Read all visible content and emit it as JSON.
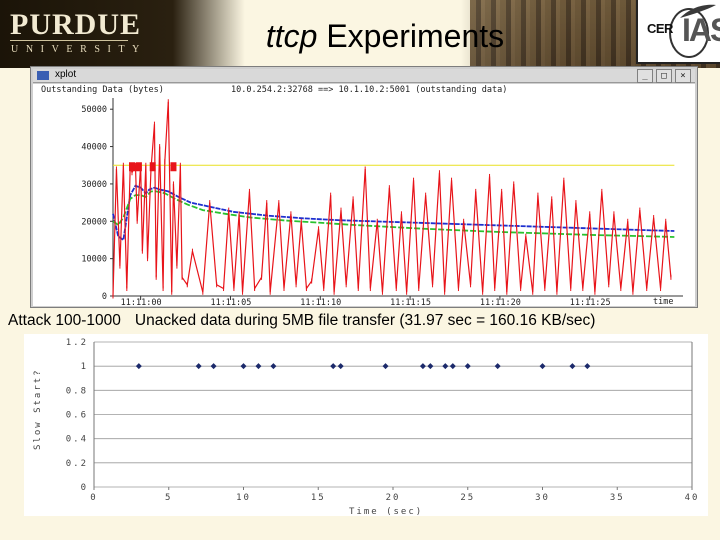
{
  "header": {
    "logo_text": "PURDUE",
    "logo_subtext": "UNIVERSITY",
    "title_italic": "ttcp",
    "title_rest": " Experiments",
    "partner_logo": {
      "part1": "CER",
      "part2": "IAS"
    }
  },
  "xplot_window": {
    "window_title": "xplot",
    "upper_left_label": "Outstanding Data (bytes)",
    "connection_label": "10.0.254.2:32768 ==> 10.1.10.2:5001 (outstanding data)",
    "x_axis_label": "time",
    "buttons": [
      "_",
      "□",
      "×"
    ],
    "colors": {
      "outstanding": "#e8141a",
      "avg_blue": "#1d2fcf",
      "avg_green": "#29c22f",
      "window_yellow": "#e9e020",
      "background": "#ffffff"
    },
    "chart_data": {
      "type": "line",
      "x_ticks": [
        "11:11:00",
        "11:11:05",
        "11:11:10",
        "11:11:15",
        "11:11:20",
        "11:11:25"
      ],
      "y_ticks": [
        0,
        10000,
        20000,
        30000,
        40000,
        50000
      ],
      "ylim": [
        0,
        53000
      ],
      "series": [
        {
          "name": "window",
          "color": "#e9e020",
          "x": [
            0,
            32.5
          ],
          "values": [
            35000,
            35000
          ]
        },
        {
          "name": "avg_blue",
          "color": "#1d2fcf",
          "x": [
            0,
            0.3,
            0.6,
            1.0,
            1.3,
            1.6,
            1.9,
            2.1,
            2.4,
            2.7,
            3.2,
            3.8,
            4.5,
            5.5,
            7,
            9,
            11,
            13,
            15,
            17,
            19,
            21,
            23,
            25,
            27,
            29,
            31,
            32.5
          ],
          "values": [
            22000,
            16000,
            15000,
            27000,
            29500,
            29000,
            27500,
            28500,
            29000,
            28500,
            28000,
            26500,
            25000,
            24000,
            22500,
            21500,
            20800,
            20300,
            20000,
            19700,
            19400,
            19100,
            18800,
            18500,
            18200,
            17900,
            17600,
            17400
          ]
        },
        {
          "name": "avg_green",
          "color": "#29c22f",
          "x": [
            0,
            0.3,
            0.6,
            1.0,
            1.3,
            1.6,
            1.9,
            2.2,
            2.5,
            3.0,
            3.6,
            4.3,
            5.2,
            6.5,
            8,
            10,
            12,
            14,
            16,
            18,
            20,
            22,
            24,
            26,
            28,
            30,
            32.5
          ],
          "values": [
            20000,
            19000,
            21000,
            26000,
            27000,
            27000,
            26500,
            28000,
            28000,
            27500,
            26000,
            24500,
            23000,
            22000,
            21000,
            20200,
            19600,
            19000,
            18500,
            18000,
            17600,
            17200,
            16900,
            16600,
            16300,
            16100,
            15800
          ]
        },
        {
          "name": "outstanding",
          "color": "#e8141a",
          "x": [
            0,
            0.2,
            0.4,
            0.6,
            0.8,
            1.0,
            1.1,
            1.3,
            1.4,
            1.6,
            1.7,
            1.9,
            2.0,
            2.2,
            2.4,
            2.5,
            2.7,
            2.9,
            3.0,
            3.2,
            3.4,
            3.5,
            3.7,
            3.9,
            4.0,
            4.3,
            4.6,
            5.2,
            5.6,
            6.0,
            6.4,
            6.7,
            7.0,
            7.3,
            7.5,
            7.9,
            8.2,
            8.6,
            8.9,
            9.1,
            9.6,
            9.9,
            10.3,
            10.6,
            10.9,
            11.2,
            11.5,
            11.9,
            12.2,
            12.6,
            12.8,
            13.2,
            13.5,
            13.9,
            14.2,
            14.6,
            14.9,
            15.3,
            15.6,
            16.0,
            16.4,
            16.7,
            17.0,
            17.4,
            17.7,
            18.1,
            18.5,
            18.9,
            19.2,
            19.6,
            20.0,
            20.3,
            20.7,
            21.0,
            21.4,
            21.8,
            22.1,
            22.5,
            22.8,
            23.2,
            23.6,
            23.9,
            24.3,
            24.6,
            25.0,
            25.4,
            25.7,
            26.1,
            26.5,
            26.8,
            27.2,
            27.6,
            27.9,
            28.3,
            28.7,
            29.0,
            29.4,
            29.8,
            30.1,
            30.5,
            30.9,
            31.3,
            31.7,
            32.0,
            32.3
          ],
          "values": [
            0,
            34000,
            8000,
            35000,
            2000,
            35000,
            33000,
            35000,
            20000,
            35000,
            12000,
            35000,
            10000,
            34000,
            46000,
            5000,
            40000,
            2000,
            36000,
            52000,
            1000,
            30000,
            8000,
            35000,
            5000,
            3000,
            12000,
            1000,
            25000,
            3000,
            2000,
            23000,
            2000,
            22000,
            1000,
            28000,
            2000,
            5000,
            25000,
            1000,
            25000,
            2000,
            22000,
            3000,
            20000,
            2000,
            4000,
            18000,
            2000,
            27000,
            1000,
            23000,
            3000,
            26000,
            2000,
            34000,
            2000,
            20000,
            1000,
            29000,
            2000,
            22000,
            1000,
            31000,
            2000,
            27000,
            3000,
            33000,
            1000,
            31000,
            2000,
            20000,
            3000,
            28000,
            1000,
            32000,
            2000,
            28000,
            1000,
            30000,
            2000,
            16000,
            1000,
            27000,
            2000,
            26000,
            1000,
            31000,
            2000,
            25000,
            2000,
            22000,
            1000,
            28000,
            3000,
            22000,
            2000,
            20000,
            1000,
            23000,
            2000,
            21000,
            2000,
            20000,
            5000
          ]
        }
      ]
    }
  },
  "caption": {
    "left": "Attack 100-1000",
    "right": "Unacked data during 5MB file transfer  (31.97 sec = 160.16 KB/sec)"
  },
  "lower_chart": {
    "y_axis_label": "Slow Start?",
    "x_axis_label": "Time (sec)",
    "chart_data": {
      "type": "scatter",
      "x_ticks": [
        0,
        5,
        10,
        15,
        20,
        25,
        30,
        35,
        40
      ],
      "y_ticks": [
        "0",
        "0.2",
        "0.4",
        "0.6",
        "0.8",
        "1",
        "1.2"
      ],
      "xlim": [
        0,
        40
      ],
      "ylim": [
        0,
        1.2
      ],
      "series": [
        {
          "color": "#1c2a6b",
          "x": [
            3.0,
            7.0,
            8.0,
            10.0,
            11.0,
            12.0,
            16.0,
            16.5,
            19.5,
            22.0,
            22.5,
            23.5,
            24.0,
            25.0,
            27.0,
            30.0,
            32.0,
            33.0
          ],
          "values": [
            1,
            1,
            1,
            1,
            1,
            1,
            1,
            1,
            1,
            1,
            1,
            1,
            1,
            1,
            1,
            1,
            1,
            1
          ]
        }
      ]
    }
  }
}
